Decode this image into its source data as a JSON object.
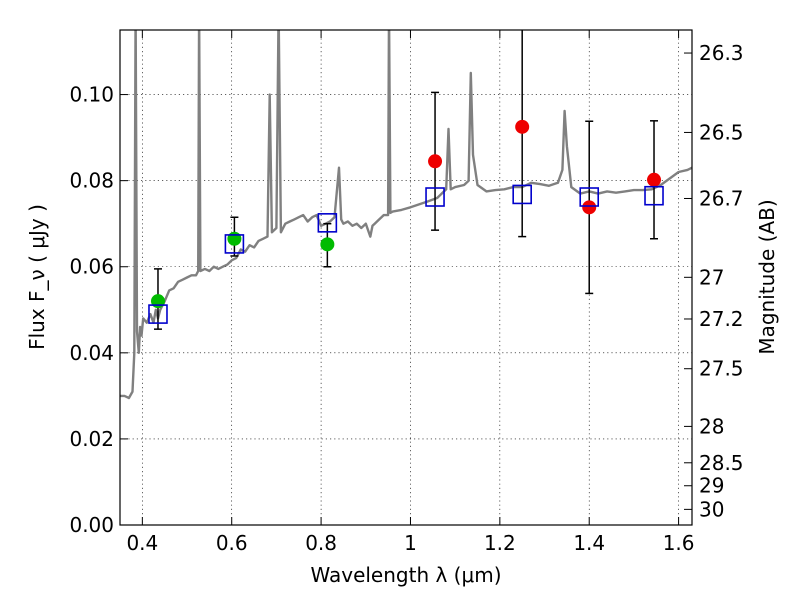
{
  "chart_data": {
    "type": "scatter",
    "title": "",
    "xlabel": "Wavelength  λ (μm)",
    "ylabel": "Flux  F_ν  ( μJy )",
    "ylabel_right": "Magnitude (AB)",
    "xlim": [
      0.35,
      1.63
    ],
    "ylim": [
      0.0,
      0.115
    ],
    "grid": true,
    "x_ticks": [
      0.4,
      0.6,
      0.8,
      1.0,
      1.2,
      1.4,
      1.6
    ],
    "x_tick_labels": [
      "0.4",
      "0.6",
      "0.8",
      "1",
      "1.2",
      "1.4",
      "1.6"
    ],
    "y_ticks": [
      0.0,
      0.02,
      0.04,
      0.06,
      0.08,
      0.1
    ],
    "y_tick_labels": [
      "0.00",
      "0.02",
      "0.04",
      "0.06",
      "0.08",
      "0.10"
    ],
    "right_axis": {
      "ticks": [
        26.3,
        26.5,
        26.7,
        27,
        27.2,
        27.5,
        28,
        28.5,
        29,
        30
      ],
      "tick_labels": [
        "26.3",
        "26.5",
        "26.7",
        "27",
        "27.2",
        "27.5",
        "28",
        "28.5",
        "29",
        "30"
      ]
    },
    "series": [
      {
        "kind": "observed-optical",
        "color": "#00bb00",
        "points": [
          {
            "x": 0.435,
            "y": 0.052,
            "yerr_low": 0.0065,
            "yerr_high": 0.0075
          },
          {
            "x": 0.606,
            "y": 0.0665,
            "yerr_low": 0.004,
            "yerr_high": 0.005
          },
          {
            "x": 0.814,
            "y": 0.0652,
            "yerr_low": 0.0052,
            "yerr_high": 0.0048
          }
        ]
      },
      {
        "kind": "observed-nir",
        "color": "#ee0000",
        "points": [
          {
            "x": 1.055,
            "y": 0.0845,
            "yerr_low": 0.016,
            "yerr_high": 0.016
          },
          {
            "x": 1.25,
            "y": 0.0925,
            "yerr_low": 0.0255,
            "yerr_high": 0.0255
          },
          {
            "x": 1.4,
            "y": 0.0738,
            "yerr_low": 0.02,
            "yerr_high": 0.02
          },
          {
            "x": 1.545,
            "y": 0.0802,
            "yerr_low": 0.0137,
            "yerr_high": 0.0137
          }
        ]
      },
      {
        "kind": "model-photometry",
        "color": "#0000cc",
        "points": [
          {
            "x": 0.435,
            "y": 0.049
          },
          {
            "x": 0.606,
            "y": 0.0653
          },
          {
            "x": 0.814,
            "y": 0.0702
          },
          {
            "x": 1.055,
            "y": 0.0762
          },
          {
            "x": 1.25,
            "y": 0.0768
          },
          {
            "x": 1.4,
            "y": 0.0762
          },
          {
            "x": 1.545,
            "y": 0.0765
          }
        ]
      },
      {
        "kind": "model-spectrum",
        "color": "#808080",
        "points": [
          [
            0.35,
            0.03
          ],
          [
            0.36,
            0.03
          ],
          [
            0.37,
            0.0295
          ],
          [
            0.378,
            0.031
          ],
          [
            0.382,
            0.04
          ],
          [
            0.385,
            0.12
          ],
          [
            0.388,
            0.045
          ],
          [
            0.392,
            0.04
          ],
          [
            0.395,
            0.046
          ],
          [
            0.398,
            0.044
          ],
          [
            0.402,
            0.048
          ],
          [
            0.41,
            0.047
          ],
          [
            0.418,
            0.049
          ],
          [
            0.425,
            0.047
          ],
          [
            0.43,
            0.05
          ],
          [
            0.435,
            0.048
          ],
          [
            0.44,
            0.05
          ],
          [
            0.45,
            0.052
          ],
          [
            0.46,
            0.0545
          ],
          [
            0.47,
            0.055
          ],
          [
            0.48,
            0.0565
          ],
          [
            0.49,
            0.057
          ],
          [
            0.5,
            0.0575
          ],
          [
            0.51,
            0.058
          ],
          [
            0.52,
            0.058
          ],
          [
            0.525,
            0.059
          ],
          [
            0.527,
            0.12
          ],
          [
            0.53,
            0.059
          ],
          [
            0.54,
            0.0595
          ],
          [
            0.55,
            0.059
          ],
          [
            0.56,
            0.06
          ],
          [
            0.57,
            0.0595
          ],
          [
            0.58,
            0.06
          ],
          [
            0.59,
            0.0605
          ],
          [
            0.6,
            0.0615
          ],
          [
            0.61,
            0.062
          ],
          [
            0.62,
            0.064
          ],
          [
            0.63,
            0.0635
          ],
          [
            0.64,
            0.065
          ],
          [
            0.65,
            0.0645
          ],
          [
            0.66,
            0.066
          ],
          [
            0.67,
            0.0665
          ],
          [
            0.68,
            0.067
          ],
          [
            0.685,
            0.1
          ],
          [
            0.69,
            0.068
          ],
          [
            0.7,
            0.069
          ],
          [
            0.705,
            0.12
          ],
          [
            0.71,
            0.068
          ],
          [
            0.72,
            0.07
          ],
          [
            0.73,
            0.0705
          ],
          [
            0.74,
            0.071
          ],
          [
            0.75,
            0.0715
          ],
          [
            0.76,
            0.072
          ],
          [
            0.77,
            0.0705
          ],
          [
            0.78,
            0.0715
          ],
          [
            0.79,
            0.072
          ],
          [
            0.8,
            0.0695
          ],
          [
            0.81,
            0.07
          ],
          [
            0.82,
            0.0705
          ],
          [
            0.83,
            0.0715
          ],
          [
            0.84,
            0.083
          ],
          [
            0.845,
            0.071
          ],
          [
            0.85,
            0.07
          ],
          [
            0.86,
            0.0705
          ],
          [
            0.87,
            0.0695
          ],
          [
            0.88,
            0.07
          ],
          [
            0.89,
            0.069
          ],
          [
            0.9,
            0.07
          ],
          [
            0.91,
            0.067
          ],
          [
            0.915,
            0.0695
          ],
          [
            0.92,
            0.07
          ],
          [
            0.93,
            0.071
          ],
          [
            0.94,
            0.072
          ],
          [
            0.95,
            0.072
          ],
          [
            0.952,
            0.12
          ],
          [
            0.955,
            0.0725
          ],
          [
            0.96,
            0.0728
          ],
          [
            0.98,
            0.0732
          ],
          [
            1.0,
            0.0738
          ],
          [
            1.02,
            0.0745
          ],
          [
            1.04,
            0.0752
          ],
          [
            1.06,
            0.076
          ],
          [
            1.08,
            0.078
          ],
          [
            1.085,
            0.092
          ],
          [
            1.09,
            0.078
          ],
          [
            1.1,
            0.0785
          ],
          [
            1.12,
            0.079
          ],
          [
            1.13,
            0.08
          ],
          [
            1.135,
            0.105
          ],
          [
            1.14,
            0.086
          ],
          [
            1.15,
            0.079
          ],
          [
            1.17,
            0.0775
          ],
          [
            1.19,
            0.0778
          ],
          [
            1.21,
            0.078
          ],
          [
            1.23,
            0.0785
          ],
          [
            1.25,
            0.0785
          ],
          [
            1.27,
            0.0795
          ],
          [
            1.29,
            0.0792
          ],
          [
            1.31,
            0.0788
          ],
          [
            1.33,
            0.0795
          ],
          [
            1.34,
            0.0825
          ],
          [
            1.345,
            0.0962
          ],
          [
            1.35,
            0.088
          ],
          [
            1.36,
            0.0785
          ],
          [
            1.38,
            0.077
          ],
          [
            1.4,
            0.0775
          ],
          [
            1.42,
            0.077
          ],
          [
            1.44,
            0.0775
          ],
          [
            1.46,
            0.0772
          ],
          [
            1.48,
            0.0775
          ],
          [
            1.5,
            0.0778
          ],
          [
            1.52,
            0.0778
          ],
          [
            1.54,
            0.078
          ],
          [
            1.56,
            0.079
          ],
          [
            1.58,
            0.0805
          ],
          [
            1.6,
            0.082
          ],
          [
            1.62,
            0.0825
          ],
          [
            1.63,
            0.083
          ]
        ]
      }
    ]
  }
}
